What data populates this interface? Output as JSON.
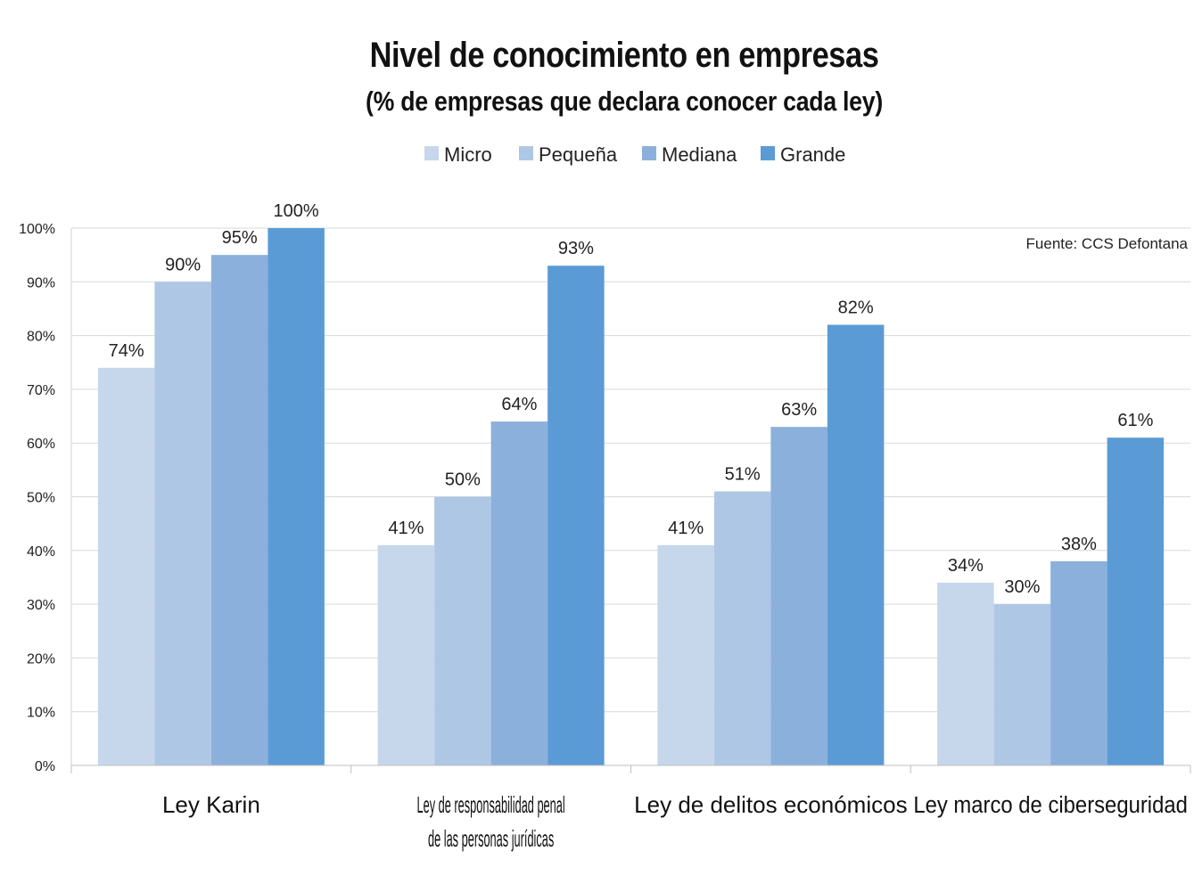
{
  "chart_data": {
    "type": "bar",
    "title": "Nivel de conocimiento en empresas",
    "subtitle": "(% de empresas que declara conocer cada ley)",
    "source_note": "Fuente: CCS Defontana",
    "xlabel": "",
    "ylabel": "",
    "ylim": [
      0,
      100
    ],
    "y_ticks": [
      "0%",
      "10%",
      "20%",
      "30%",
      "40%",
      "50%",
      "60%",
      "70%",
      "80%",
      "90%",
      "100%"
    ],
    "grid": true,
    "legend_position": "top",
    "categories": [
      [
        "Ley Karin"
      ],
      [
        "Ley de responsabilidad penal",
        "de las personas jurídicas"
      ],
      [
        "Ley de delitos económicos"
      ],
      [
        "Ley marco de ciberseguridad"
      ]
    ],
    "series": [
      {
        "name": "Micro",
        "color": "#c6d7ec",
        "values": [
          74,
          41,
          41,
          34
        ],
        "labels": [
          "74%",
          "41%",
          "41%",
          "34%"
        ]
      },
      {
        "name": "Pequeña",
        "color": "#aec7e5",
        "values": [
          90,
          50,
          51,
          30
        ],
        "labels": [
          "90%",
          "50%",
          "51%",
          "30%"
        ]
      },
      {
        "name": "Mediana",
        "color": "#8bb0db",
        "values": [
          95,
          64,
          63,
          38
        ],
        "labels": [
          "95%",
          "64%",
          "63%",
          "38%"
        ]
      },
      {
        "name": "Grande",
        "color": "#5b9bd5",
        "values": [
          100,
          93,
          82,
          61
        ],
        "labels": [
          "100%",
          "93%",
          "82%",
          "61%"
        ]
      }
    ]
  }
}
